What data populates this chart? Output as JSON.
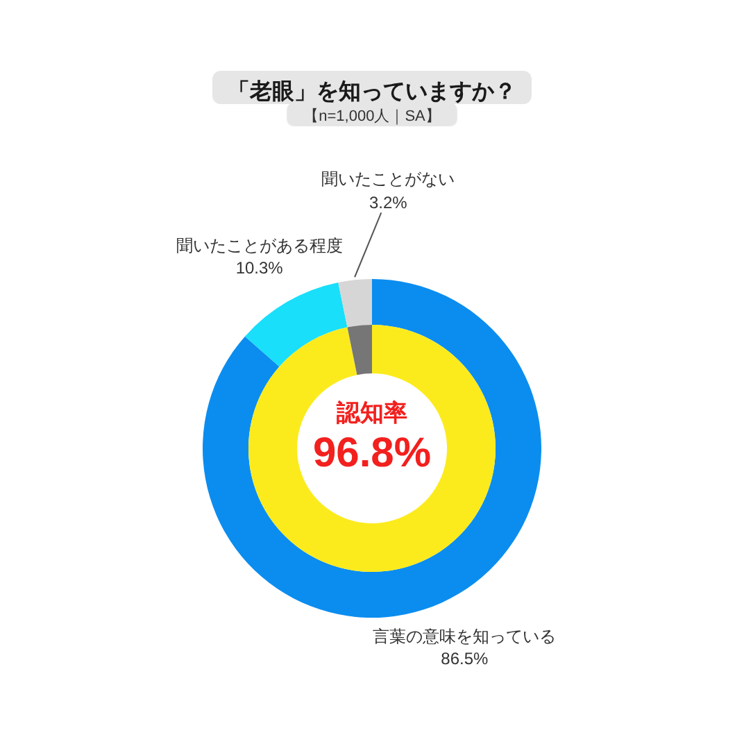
{
  "chart_data": [
    {
      "type": "donut",
      "title": "「老眼」を知っていますか？",
      "subtitle": "【n=1,000人｜SA】",
      "categories": [
        "言葉の意味を知っている",
        "聞いたことがある程度",
        "聞いたことがない"
      ],
      "values": [
        86.5,
        10.3,
        3.2
      ],
      "colors": [
        "#0b8def",
        "#19dffb",
        "#d6d6d6"
      ],
      "value_labels": [
        "86.5%",
        "10.3%",
        "3.2%"
      ]
    },
    {
      "type": "donut",
      "categories": [
        "認知率",
        null
      ],
      "values": [
        96.8,
        3.2
      ],
      "colors": [
        "#fbeb1d",
        "#767676"
      ],
      "value_labels": [
        "96.8%",
        null
      ]
    }
  ]
}
